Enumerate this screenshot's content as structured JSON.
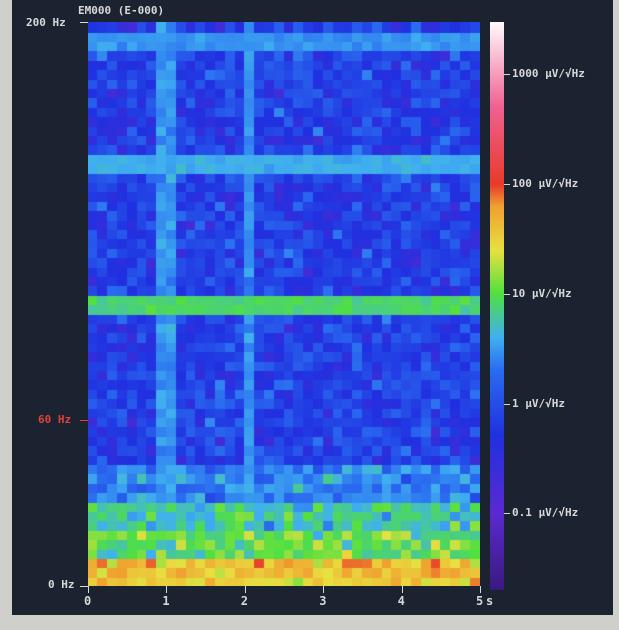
{
  "chart_data": {
    "type": "heatmap",
    "title": "EM000 (E-000)",
    "x_axis": {
      "range": [
        0,
        5
      ],
      "ticks": [
        "0",
        "1",
        "2",
        "3",
        "4",
        "5"
      ],
      "unit": "s"
    },
    "y_axis": {
      "range": [
        0,
        200
      ],
      "ticks": [
        "0 Hz",
        "60 Hz",
        "200 Hz"
      ],
      "highlight_tick": "60 Hz",
      "highlight_color": "#e0403a"
    },
    "colorbar": {
      "scale": "log",
      "range_uV_per_sqrtHz": [
        0.02,
        3000
      ],
      "ticks": [
        "0.1 μV/√Hz",
        "1 μV/√Hz",
        "10 μV/√Hz",
        "100 μV/√Hz",
        "1000 μV/√Hz"
      ],
      "colors": [
        "#3a1a80",
        "#5a2ad0",
        "#2030e0",
        "#2a6cf0",
        "#40b0f0",
        "#50e040",
        "#e8e040",
        "#f0a030",
        "#e83a2a",
        "#f06090",
        "#ffffff"
      ]
    },
    "time_bins": 40,
    "freq_bins": 60,
    "freq_profile_uV": {
      "0-3 Hz": 30,
      "3-10 Hz": 40,
      "10-20 Hz": 10,
      "20-30 Hz": 6,
      "30-45 Hz": 2.5,
      "45-200 Hz": 0.7
    },
    "line_noise": [
      {
        "freq_hz": 100,
        "level_uV": 8
      },
      {
        "freq_hz": 150,
        "level_uV": 4
      },
      {
        "freq_hz": 193,
        "level_uV": 3
      }
    ],
    "time_stripes": [
      {
        "time_s": 1.0,
        "level_uV": 3
      },
      {
        "time_s": 2.05,
        "level_uV": 3
      }
    ]
  }
}
